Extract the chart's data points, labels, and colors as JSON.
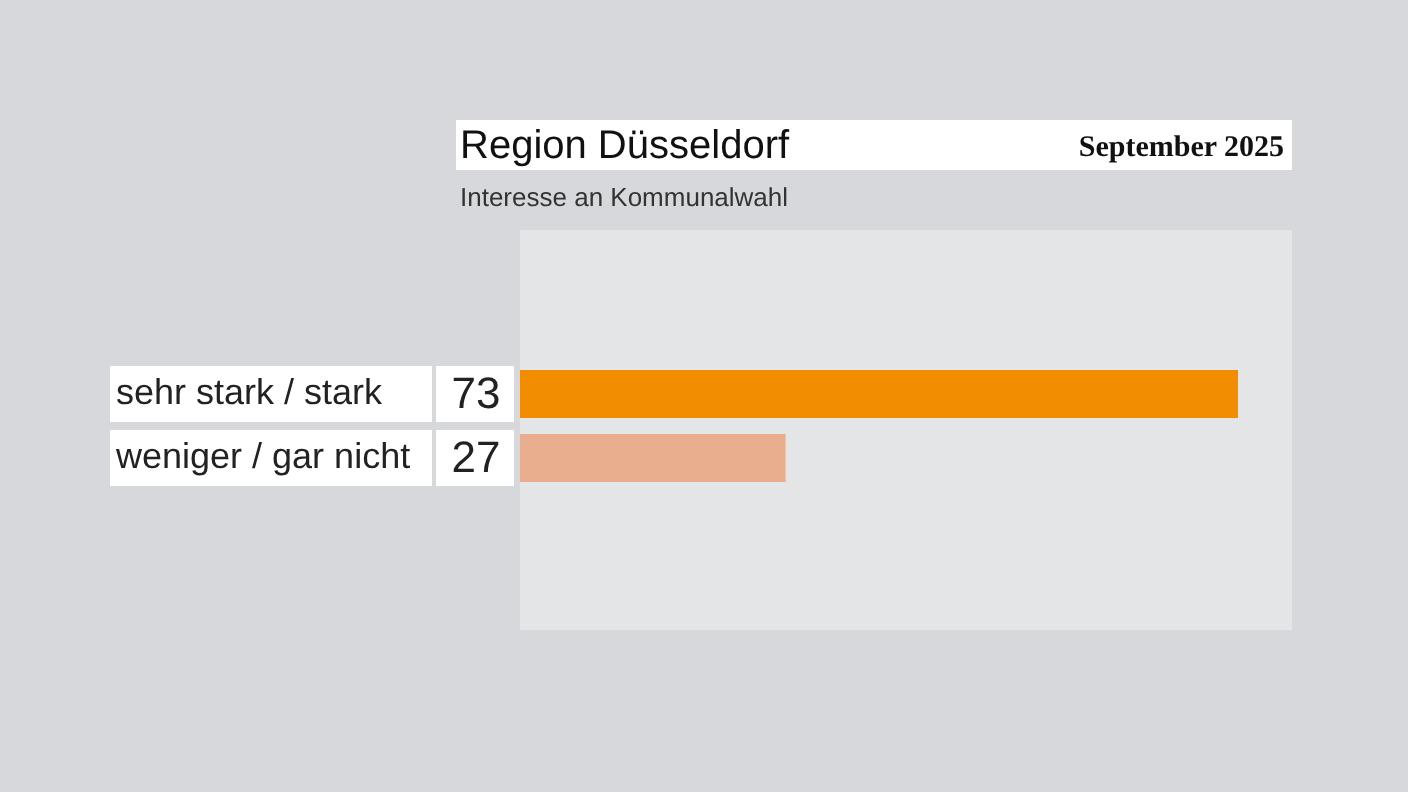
{
  "chart_data": {
    "type": "bar",
    "orientation": "horizontal",
    "title": "Region Düsseldorf",
    "subtitle": "Interesse an Kommunalwahl",
    "categories": [
      "sehr stark / stark",
      "weniger / gar nicht"
    ],
    "values": [
      73,
      27
    ],
    "colors": [
      "#f28c00",
      "#e8ae8e"
    ],
    "data_labels": true,
    "annotations": [
      "September 2025"
    ]
  }
}
